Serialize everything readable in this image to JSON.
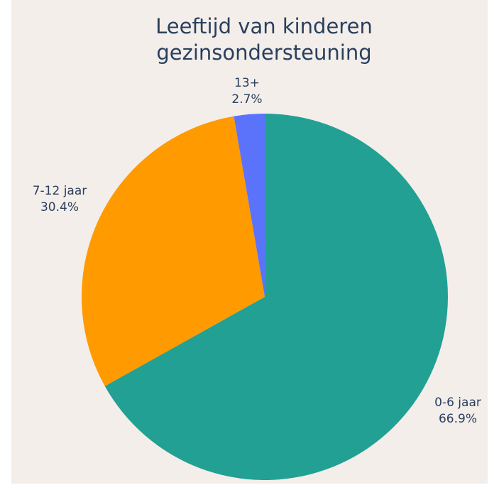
{
  "chart_data": {
    "type": "pie",
    "title_lines": [
      "Leeftijd van kinderen",
      "gezinsondersteuning"
    ],
    "slices": [
      {
        "label": "0-6 jaar",
        "value": 66.9,
        "display": "66.9%",
        "color": "#22a094"
      },
      {
        "label": "7-12 jaar",
        "value": 30.4,
        "display": "30.4%",
        "color": "#ff9a00"
      },
      {
        "label": "13+",
        "value": 2.7,
        "display": "2.7%",
        "color": "#5b73fb"
      }
    ],
    "direction": "clockwise",
    "start": "top",
    "labels_outside": true
  },
  "colors": {
    "background": "#f3eee9",
    "text": "#2a3f5f"
  }
}
